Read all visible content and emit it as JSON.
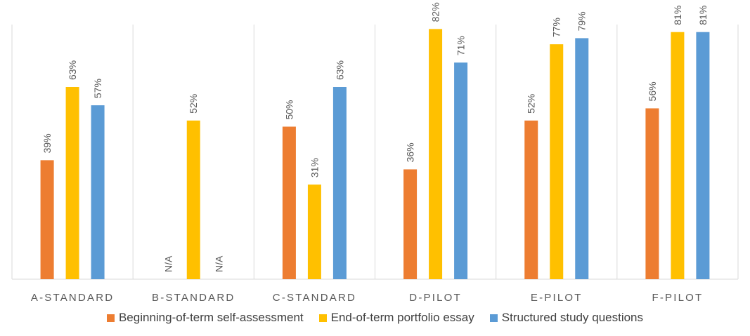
{
  "chart_data": {
    "type": "bar",
    "categories": [
      "A-STANDARD",
      "B-STANDARD",
      "C-STANDARD",
      "D-PILOT",
      "E-PILOT",
      "F-PILOT"
    ],
    "series": [
      {
        "name": "Beginning-of-term self-assessment",
        "color": "#ED7D31",
        "values": [
          39,
          null,
          50,
          36,
          52,
          56
        ],
        "labels": [
          "39%",
          "N/A",
          "50%",
          "36%",
          "52%",
          "56%"
        ]
      },
      {
        "name": "End-of-term portfolio essay",
        "color": "#FFC000",
        "values": [
          63,
          52,
          31,
          82,
          77,
          81
        ],
        "labels": [
          "63%",
          "52%",
          "31%",
          "82%",
          "77%",
          "81%"
        ]
      },
      {
        "name": "Structured study questions",
        "color": "#5B9BD5",
        "values": [
          57,
          null,
          63,
          71,
          79,
          81
        ],
        "labels": [
          "57%",
          "N/A",
          "63%",
          "71%",
          "79%",
          "81%"
        ]
      }
    ],
    "ylim": [
      0,
      90
    ],
    "grid": false,
    "legend_position": "bottom"
  }
}
